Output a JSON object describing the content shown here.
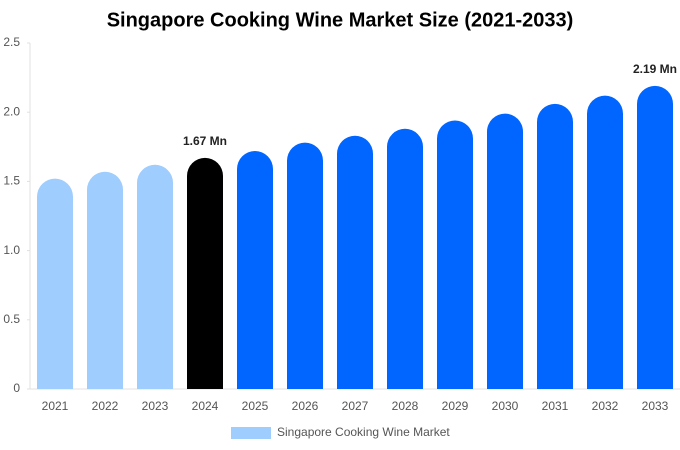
{
  "chart_data": {
    "type": "bar",
    "title": "Singapore Cooking Wine Market Size (2021-2033)",
    "categories": [
      "2021",
      "2022",
      "2023",
      "2024",
      "2025",
      "2026",
      "2027",
      "2028",
      "2029",
      "2030",
      "2031",
      "2032",
      "2033"
    ],
    "series": [
      {
        "name": "Singapore Cooking Wine Market",
        "color": "#9fcdfd",
        "colors": [
          "#9fcdfd",
          "#9fcdfd",
          "#9fcdfd",
          "#000000",
          "#0066ff",
          "#0066ff",
          "#0066ff",
          "#0066ff",
          "#0066ff",
          "#0066ff",
          "#0066ff",
          "#0066ff",
          "#0066ff"
        ],
        "values": [
          1.52,
          1.57,
          1.62,
          1.67,
          1.72,
          1.78,
          1.83,
          1.88,
          1.94,
          1.99,
          2.06,
          2.12,
          2.19
        ],
        "value_labels": [
          null,
          null,
          null,
          "1.67 Mn",
          null,
          null,
          null,
          null,
          null,
          null,
          null,
          null,
          "2.19 Mn"
        ]
      }
    ],
    "ylim": [
      0,
      2.5
    ],
    "yticks": [
      0,
      0.5,
      {
        "value": 1,
        "label": "1.0"
      },
      1.5,
      {
        "value": 2,
        "label": "2.0"
      },
      2.5
    ],
    "grid": false
  }
}
